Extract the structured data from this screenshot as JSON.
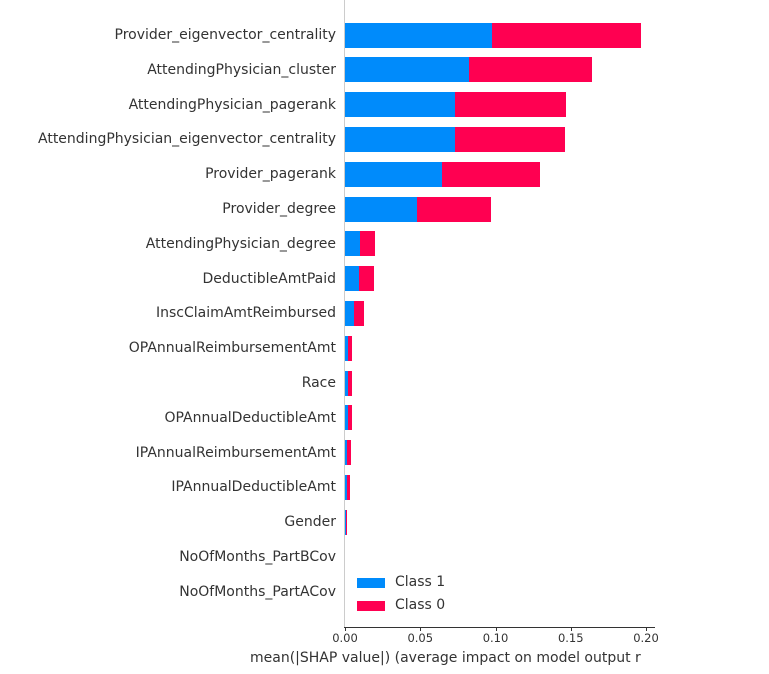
{
  "chart_data": {
    "type": "bar",
    "orientation": "horizontal",
    "stacked": true,
    "title": "",
    "xlabel": "mean(|SHAP value|) (average impact on model output r",
    "ylabel": "",
    "xlim": [
      0,
      0.207
    ],
    "xticks": [
      "0.00",
      "0.05",
      "0.10",
      "0.15",
      "0.20"
    ],
    "grid": false,
    "legend_position": "lower-center",
    "categories": [
      "Provider_eigenvector_centrality",
      "AttendingPhysician_cluster",
      "AttendingPhysician_pagerank",
      "AttendingPhysician_eigenvector_centrality",
      "Provider_pagerank",
      "Provider_degree",
      "AttendingPhysician_degree",
      "DeductibleAmtPaid",
      "InscClaimAmtReimbursed",
      "OPAnnualReimbursementAmt",
      "Race",
      "OPAnnualDeductibleAmt",
      "IPAnnualReimbursementAmt",
      "IPAnnualDeductibleAmt",
      "Gender",
      "NoOfMonths_PartBCov",
      "NoOfMonths_PartACov"
    ],
    "series": [
      {
        "name": "Class 1",
        "color": "#008bfb",
        "values": [
          0.0977,
          0.0824,
          0.0731,
          0.0731,
          0.0645,
          0.0478,
          0.01,
          0.0093,
          0.006,
          0.002,
          0.002,
          0.002,
          0.0015,
          0.0013,
          0.0005,
          0.0,
          0.0
        ]
      },
      {
        "name": "Class 0",
        "color": "#ff0051",
        "values": [
          0.099,
          0.0817,
          0.0737,
          0.0731,
          0.0651,
          0.0492,
          0.0099,
          0.01,
          0.0066,
          0.0027,
          0.0027,
          0.0027,
          0.0025,
          0.002,
          0.0005,
          0.0,
          0.0
        ]
      }
    ]
  }
}
